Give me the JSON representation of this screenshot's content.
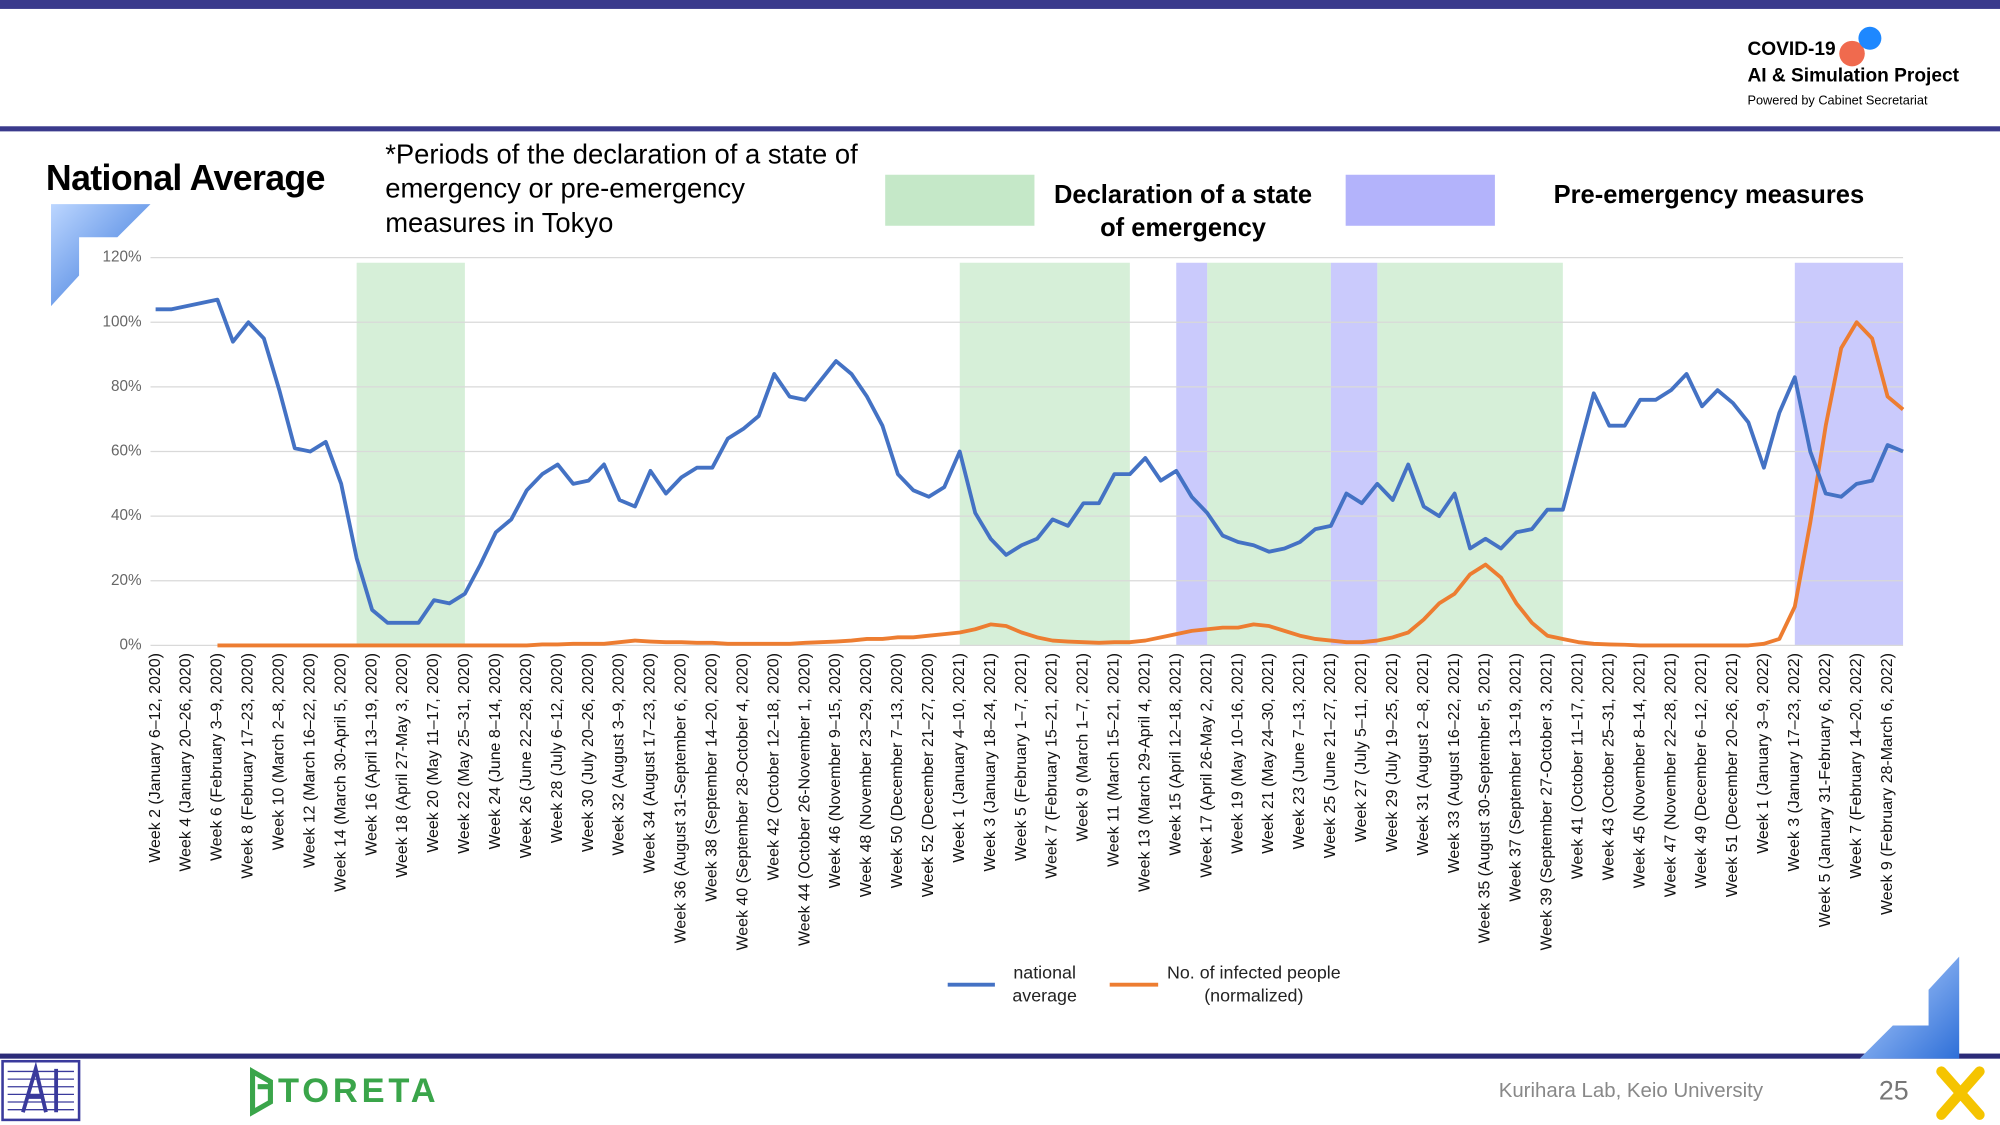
{
  "header": {
    "logo_line_1": "COVID-19",
    "logo_line_2": "AI & Simulation Project",
    "logo_line_3": "Powered by Cabinet Secretariat"
  },
  "footer": {
    "sponsor": "TORETA",
    "credit": "Kurihara Lab, Keio University",
    "page": "25"
  },
  "chart_data": {
    "type": "line",
    "title": "National Average",
    "note": "*Periods of the declaration of a state of emergency or pre-emergency measures in Tokyo",
    "categories": [
      "Week 2 (January 6–12, 2020)",
      null,
      "Week 4 (January 20–26, 2020)",
      null,
      "Week 6 (February 3–9, 2020)",
      null,
      "Week 8 (February 17–23, 2020)",
      null,
      "Week 10 (March 2–8, 2020)",
      null,
      "Week 12 (March 16–22, 2020)",
      null,
      "Week 14 (March 30-April 5, 2020)",
      null,
      "Week 16 (April 13–19, 2020)",
      null,
      "Week 18 (April 27-May 3, 2020)",
      null,
      "Week 20 (May 11–17, 2020)",
      null,
      "Week 22 (May 25–31, 2020)",
      null,
      "Week 24 (June 8–14, 2020)",
      null,
      "Week 26 (June 22–28, 2020)",
      null,
      "Week 28 (July 6–12, 2020)",
      null,
      "Week 30 (July 20–26, 2020)",
      null,
      "Week 32 (August 3–9, 2020)",
      null,
      "Week 34 (August 17–23, 2020)",
      null,
      "Week 36 (August 31-September 6, 2020)",
      null,
      "Week 38 (September 14–20, 2020)",
      null,
      "Week 40 (September 28-October 4, 2020)",
      null,
      "Week 42 (October 12–18, 2020)",
      null,
      "Week 44 (October 26-November 1, 2020)",
      null,
      "Week 46 (November 9–15, 2020)",
      null,
      "Week 48 (November 23–29, 2020)",
      null,
      "Week 50 (December 7–13, 2020)",
      null,
      "Week 52 (December 21–27, 2020)",
      null,
      "Week 1 (January 4–10, 2021)",
      null,
      "Week 3 (January 18–24, 2021)",
      null,
      "Week 5 (February 1–7, 2021)",
      null,
      "Week 7 (February 15–21, 2021)",
      null,
      "Week 9 (March 1–7, 2021)",
      null,
      "Week 11 (March 15–21, 2021)",
      null,
      "Week 13 (March 29-April 4, 2021)",
      null,
      "Week 15 (April 12–18, 2021)",
      null,
      "Week 17 (April 26-May 2, 2021)",
      null,
      "Week 19 (May 10–16, 2021)",
      null,
      "Week 21 (May 24–30, 2021)",
      null,
      "Week 23 (June 7–13, 2021)",
      null,
      "Week 25 (June 21–27, 2021)",
      null,
      "Week 27 (July 5–11, 2021)",
      null,
      "Week 29 (July 19–25, 2021)",
      null,
      "Week 31 (August 2–8, 2021)",
      null,
      "Week 33 (August 16–22, 2021)",
      null,
      "Week 35 (August 30-September 5, 2021)",
      null,
      "Week 37 (September 13–19, 2021)",
      null,
      "Week 39 (September 27-October 3, 2021)",
      null,
      "Week 41 (October 11–17, 2021)",
      null,
      "Week 43 (October 25–31, 2021)",
      null,
      "Week 45 (November 8–14, 2021)",
      null,
      "Week 47 (November 22–28, 2021)",
      null,
      "Week 49 (December 6–12, 2021)",
      null,
      "Week 51 (December 20–26, 2021)",
      null,
      "Week 1 (January 3–9, 2022)",
      null,
      "Week 3 (January 17–23, 2022)",
      null,
      "Week 5 (January 31-February 6, 2022)",
      null,
      "Week 7 (February 14–20, 2022)",
      null,
      "Week 9 (February 28-March 6, 2022)",
      null
    ],
    "series": [
      {
        "name": "national average",
        "color": "#4472c4",
        "values": [
          104,
          104,
          105,
          106,
          107,
          94,
          100,
          95,
          79,
          61,
          60,
          63,
          50,
          27,
          11,
          7,
          7,
          7,
          14,
          13,
          16,
          25,
          35,
          39,
          48,
          53,
          56,
          50,
          51,
          56,
          45,
          43,
          54,
          47,
          52,
          55,
          55,
          64,
          67,
          71,
          84,
          77,
          76,
          82,
          88,
          84,
          77,
          68,
          53,
          48,
          46,
          49,
          60,
          41,
          33,
          28,
          31,
          33,
          39,
          37,
          44,
          44,
          53,
          53,
          58,
          51,
          54,
          46,
          41,
          34,
          32,
          31,
          29,
          30,
          32,
          36,
          37,
          47,
          44,
          50,
          45,
          56,
          43,
          40,
          47,
          30,
          33,
          30,
          35,
          36,
          42,
          42,
          60,
          78,
          68,
          68,
          76,
          76,
          79,
          84,
          74,
          79,
          75,
          69,
          55,
          72,
          83,
          60,
          47,
          46,
          50,
          51,
          62,
          60
        ]
      },
      {
        "name": "No. of infected people (normalized)",
        "color": "#ed7d31",
        "values": [
          null,
          null,
          null,
          null,
          0,
          0,
          0,
          0,
          0,
          0,
          0,
          0,
          0,
          0,
          0,
          0,
          0,
          0,
          0,
          0,
          0,
          0,
          0,
          0,
          0,
          0.3,
          0.3,
          0.5,
          0.5,
          0.5,
          1,
          1.5,
          1.2,
          1,
          1,
          0.8,
          0.8,
          0.5,
          0.5,
          0.5,
          0.5,
          0.5,
          0.8,
          1,
          1.2,
          1.5,
          2,
          2,
          2.5,
          2.5,
          3,
          3.5,
          4,
          5,
          6.5,
          6,
          4,
          2.5,
          1.5,
          1.2,
          1,
          0.8,
          1,
          1,
          1.5,
          2.5,
          3.5,
          4.5,
          5,
          5.5,
          5.5,
          6.5,
          6,
          4.5,
          3,
          2,
          1.5,
          1,
          1,
          1.5,
          2.5,
          4,
          8,
          13,
          16,
          22,
          25,
          21,
          13,
          7,
          3,
          2,
          1,
          0.5,
          0.3,
          0.2,
          0,
          0,
          0,
          0,
          0,
          0,
          0,
          0,
          0.5,
          2,
          12,
          38,
          68,
          92,
          100,
          95,
          77,
          73
        ]
      }
    ],
    "periods": [
      {
        "name": "Declaration of a state of emergency",
        "color": "#c5e8c8",
        "ranges": [
          [
            13,
            20
          ],
          [
            52,
            63
          ],
          [
            68,
            76
          ],
          [
            79,
            91
          ]
        ]
      },
      {
        "name": "Pre-emergency measures",
        "color": "#b3b3fb",
        "ranges": [
          [
            66,
            68
          ],
          [
            76,
            79
          ],
          [
            106,
            113
          ]
        ]
      }
    ],
    "ylim": [
      0,
      120
    ],
    "yticks": [
      {
        "value": 0,
        "label": "0%"
      },
      {
        "value": 20,
        "label": "20%"
      },
      {
        "value": 40,
        "label": "40%"
      },
      {
        "value": 60,
        "label": "60%"
      },
      {
        "value": 80,
        "label": "80%"
      },
      {
        "value": 100,
        "label": "100%"
      },
      {
        "value": 120,
        "label": "120%"
      }
    ],
    "grid": true
  }
}
